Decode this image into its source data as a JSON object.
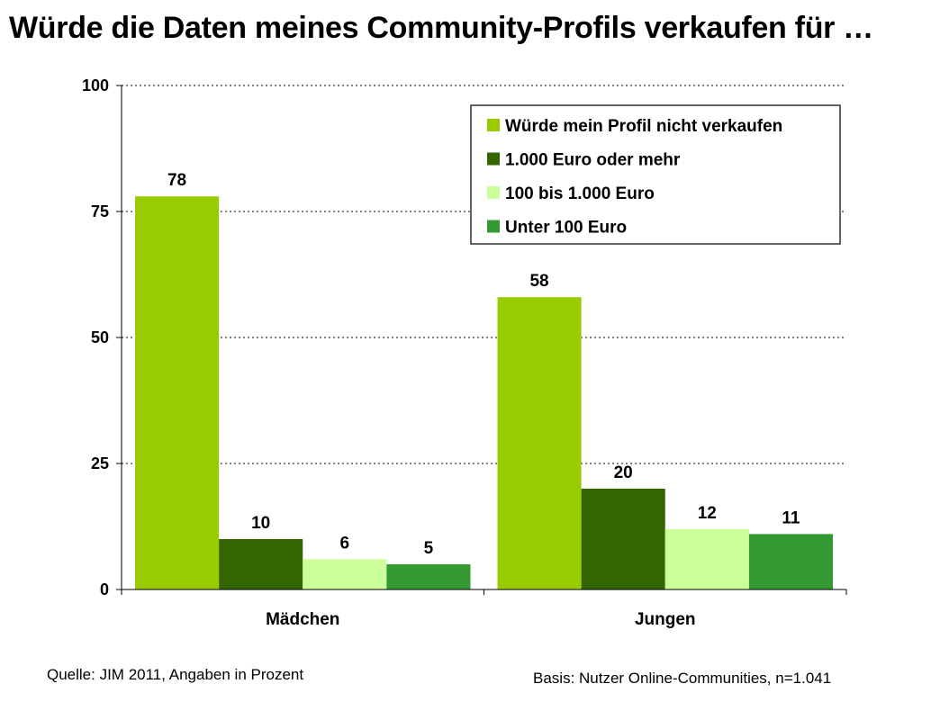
{
  "title": "Würde die Daten meines Community-Profils verkaufen für …",
  "footnote_source": "Quelle: JIM 2011, Angaben in Prozent",
  "footnote_basis": "Basis: Nutzer Online-Communities, n=1.041",
  "chart_data": {
    "type": "bar",
    "title": "Würde die Daten meines Community-Profils verkaufen für …",
    "categories": [
      "Mädchen",
      "Jungen"
    ],
    "series": [
      {
        "name": "Würde mein Profil nicht verkaufen",
        "values": [
          78,
          58
        ],
        "color": "#99cc00"
      },
      {
        "name": "1.000 Euro oder mehr",
        "values": [
          10,
          20
        ],
        "color": "#336600"
      },
      {
        "name": "100 bis 1.000 Euro",
        "values": [
          6,
          12
        ],
        "color": "#ccff99"
      },
      {
        "name": "Unter 100 Euro",
        "values": [
          5,
          11
        ],
        "color": "#339933"
      }
    ],
    "yticks": [
      "0",
      "25",
      "50",
      "75",
      "100"
    ],
    "ylim": [
      0,
      100
    ],
    "grid": true,
    "legend_position": "top-right"
  }
}
